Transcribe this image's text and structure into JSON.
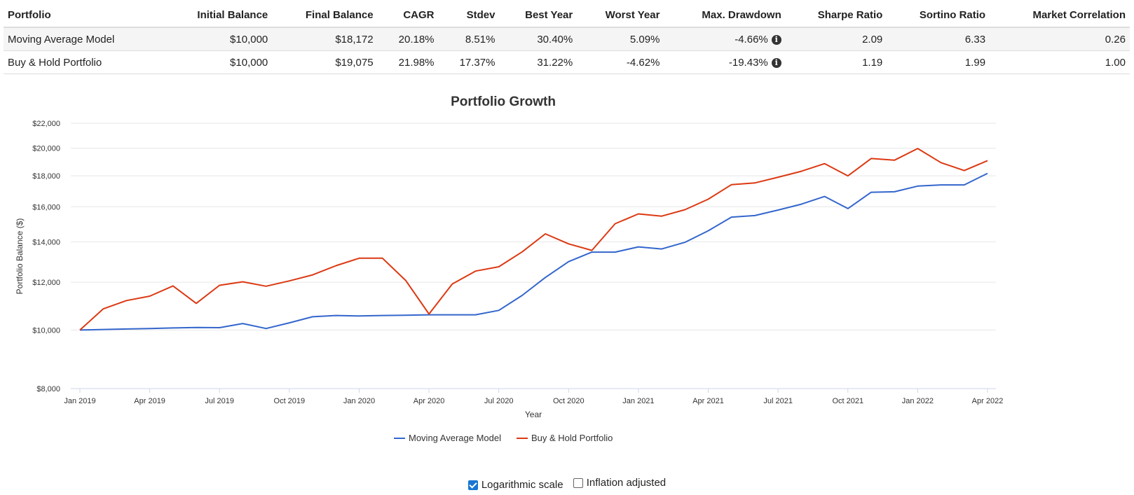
{
  "table": {
    "headers": [
      "Portfolio",
      "Initial Balance",
      "Final Balance",
      "CAGR",
      "Stdev",
      "Best Year",
      "Worst Year",
      "Max. Drawdown",
      "Sharpe Ratio",
      "Sortino Ratio",
      "Market Correlation"
    ],
    "rows": [
      {
        "portfolio": "Moving Average Model",
        "initial": "$10,000",
        "final": "$18,172",
        "cagr": "20.18%",
        "stdev": "8.51%",
        "best": "30.40%",
        "worst": "5.09%",
        "maxdd": "-4.66%",
        "sharpe": "2.09",
        "sortino": "6.33",
        "corr": "0.26"
      },
      {
        "portfolio": "Buy & Hold Portfolio",
        "initial": "$10,000",
        "final": "$19,075",
        "cagr": "21.98%",
        "stdev": "17.37%",
        "best": "31.22%",
        "worst": "-4.62%",
        "maxdd": "-19.43%",
        "sharpe": "1.19",
        "sortino": "1.99",
        "corr": "1.00"
      }
    ],
    "info_icon": "info-icon"
  },
  "controls": {
    "log_scale": {
      "label": "Logarithmic scale",
      "checked": true
    },
    "inflation": {
      "label": "Inflation adjusted",
      "checked": false
    }
  },
  "chart_data": {
    "type": "line",
    "title": "Portfolio Growth",
    "xlabel": "Year",
    "ylabel": "Portfolio Balance ($)",
    "y_scale": "log",
    "ylim": [
      8000,
      22000
    ],
    "y_ticks": [
      "$8,000",
      "$10,000",
      "$12,000",
      "$14,000",
      "$16,000",
      "$18,000",
      "$20,000",
      "$22,000"
    ],
    "y_tick_values": [
      8000,
      10000,
      12000,
      14000,
      16000,
      18000,
      20000,
      22000
    ],
    "x_tick_labels": [
      "Jan 2019",
      "Apr 2019",
      "Jul 2019",
      "Oct 2019",
      "Jan 2020",
      "Apr 2020",
      "Jul 2020",
      "Oct 2020",
      "Jan 2021",
      "Apr 2021",
      "Jul 2021",
      "Oct 2021",
      "Jan 2022",
      "Apr 2022"
    ],
    "x": [
      "Jan 2019",
      "Feb 2019",
      "Mar 2019",
      "Apr 2019",
      "May 2019",
      "Jun 2019",
      "Jul 2019",
      "Aug 2019",
      "Sep 2019",
      "Oct 2019",
      "Nov 2019",
      "Dec 2019",
      "Jan 2020",
      "Feb 2020",
      "Mar 2020",
      "Apr 2020",
      "May 2020",
      "Jun 2020",
      "Jul 2020",
      "Aug 2020",
      "Sep 2020",
      "Oct 2020",
      "Nov 2020",
      "Dec 2020",
      "Jan 2021",
      "Feb 2021",
      "Mar 2021",
      "Apr 2021",
      "May 2021",
      "Jun 2021",
      "Jul 2021",
      "Aug 2021",
      "Sep 2021",
      "Oct 2021",
      "Nov 2021",
      "Dec 2021",
      "Jan 2022",
      "Feb 2022",
      "Mar 2022",
      "Apr 2022"
    ],
    "grid": true,
    "legend_position": "bottom-center",
    "series": [
      {
        "name": "Moving Average Model",
        "color": "#3366cc",
        "values": [
          10000,
          10020,
          10040,
          10060,
          10080,
          10100,
          10090,
          10250,
          10060,
          10280,
          10520,
          10570,
          10550,
          10570,
          10580,
          10600,
          10600,
          10600,
          10780,
          11410,
          12220,
          12980,
          13460,
          13460,
          13730,
          13620,
          13970,
          14600,
          15380,
          15470,
          15800,
          16160,
          16640,
          15890,
          16910,
          16940,
          17310,
          17390,
          17390,
          18172
        ]
      },
      {
        "name": "Buy & Hold Portfolio",
        "color": "#dc3912",
        "values": [
          10000,
          10840,
          11190,
          11380,
          11830,
          11070,
          11860,
          12020,
          11820,
          12060,
          12340,
          12780,
          13150,
          13150,
          12080,
          10630,
          11920,
          12520,
          12730,
          13470,
          14430,
          13890,
          13550,
          15000,
          15570,
          15440,
          15820,
          16470,
          17410,
          17520,
          17910,
          18320,
          18860,
          18000,
          19230,
          19110,
          19980,
          18930,
          18370,
          19075
        ]
      }
    ]
  }
}
